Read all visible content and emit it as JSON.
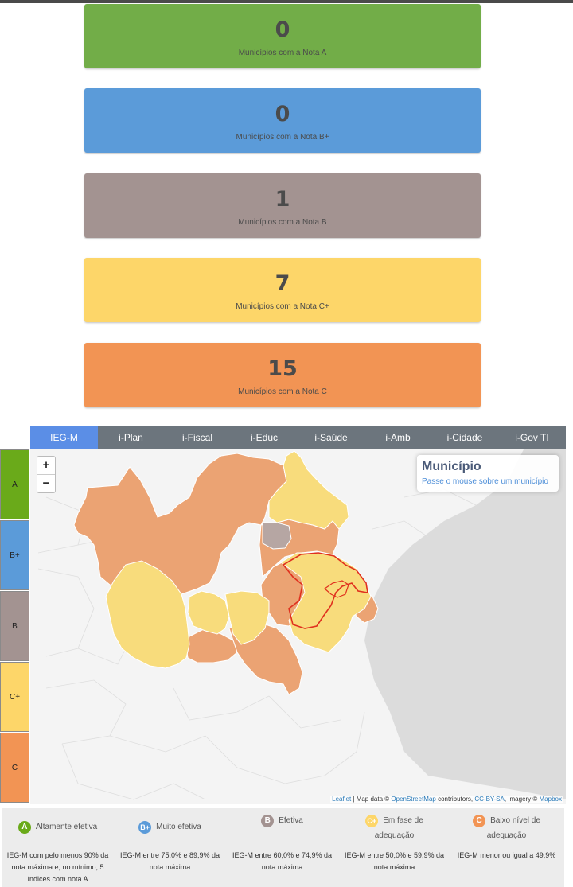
{
  "cards": [
    {
      "count": "0",
      "label": "Municípios com a Nota A",
      "color": "#72ad48"
    },
    {
      "count": "0",
      "label": "Municípios com a Nota B+",
      "color": "#5b9bd9"
    },
    {
      "count": "1",
      "label": "Municípios com a Nota B",
      "color": "#a39391"
    },
    {
      "count": "7",
      "label": "Municípios com a Nota C+",
      "color": "#fdd669"
    },
    {
      "count": "15",
      "label": "Municípios com a Nota C",
      "color": "#f29454"
    }
  ],
  "tabs": [
    {
      "label": "IEG-M",
      "active": true
    },
    {
      "label": "i-Plan"
    },
    {
      "label": "i-Fiscal"
    },
    {
      "label": "i-Educ"
    },
    {
      "label": "i-Saúde"
    },
    {
      "label": "i-Amb"
    },
    {
      "label": "i-Cidade"
    },
    {
      "label": "i-Gov TI"
    }
  ],
  "legend_column": [
    {
      "label": "A",
      "color": "#6aaa1a"
    },
    {
      "label": "B+",
      "color": "#5b9bd9"
    },
    {
      "label": "B",
      "color": "#a39391"
    },
    {
      "label": "C+",
      "color": "#fdd669"
    },
    {
      "label": "C",
      "color": "#f29454"
    }
  ],
  "map": {
    "zoom_in": "+",
    "zoom_out": "−",
    "info_title": "Município",
    "info_subtitle": "Passe o mouse sobre um município",
    "attribution": {
      "leaflet": "Leaflet",
      "sep1": " | Map data © ",
      "osm": "OpenStreetMap",
      "sep2": " contributors, ",
      "license": "CC-BY-SA",
      "sep3": ", Imagery © ",
      "mapbox": "Mapbox"
    }
  },
  "bottom_legend": [
    {
      "badge": "A",
      "name": "Altamente efetiva",
      "color": "#6aaa1a",
      "desc": "IEG-M com pelo menos 90% da nota máxima e, no mínimo, 5 índices com nota A"
    },
    {
      "badge": "B+",
      "name": "Muito efetiva",
      "color": "#5b9bd9",
      "desc": "IEG-M entre 75,0% e 89,9% da nota máxima"
    },
    {
      "badge": "B",
      "name": "Efetiva",
      "color": "#a39391",
      "desc": "IEG-M entre 60,0% e 74,9% da nota máxima"
    },
    {
      "badge": "C+",
      "name": "Em fase de adequação",
      "color": "#fdd669",
      "desc": "IEG-M entre 50,0% e 59,9% da nota máxima"
    },
    {
      "badge": "C",
      "name": "Baixo nível de adequação",
      "color": "#f29454",
      "desc": "IEG-M menor ou igual a 49,9%"
    }
  ]
}
